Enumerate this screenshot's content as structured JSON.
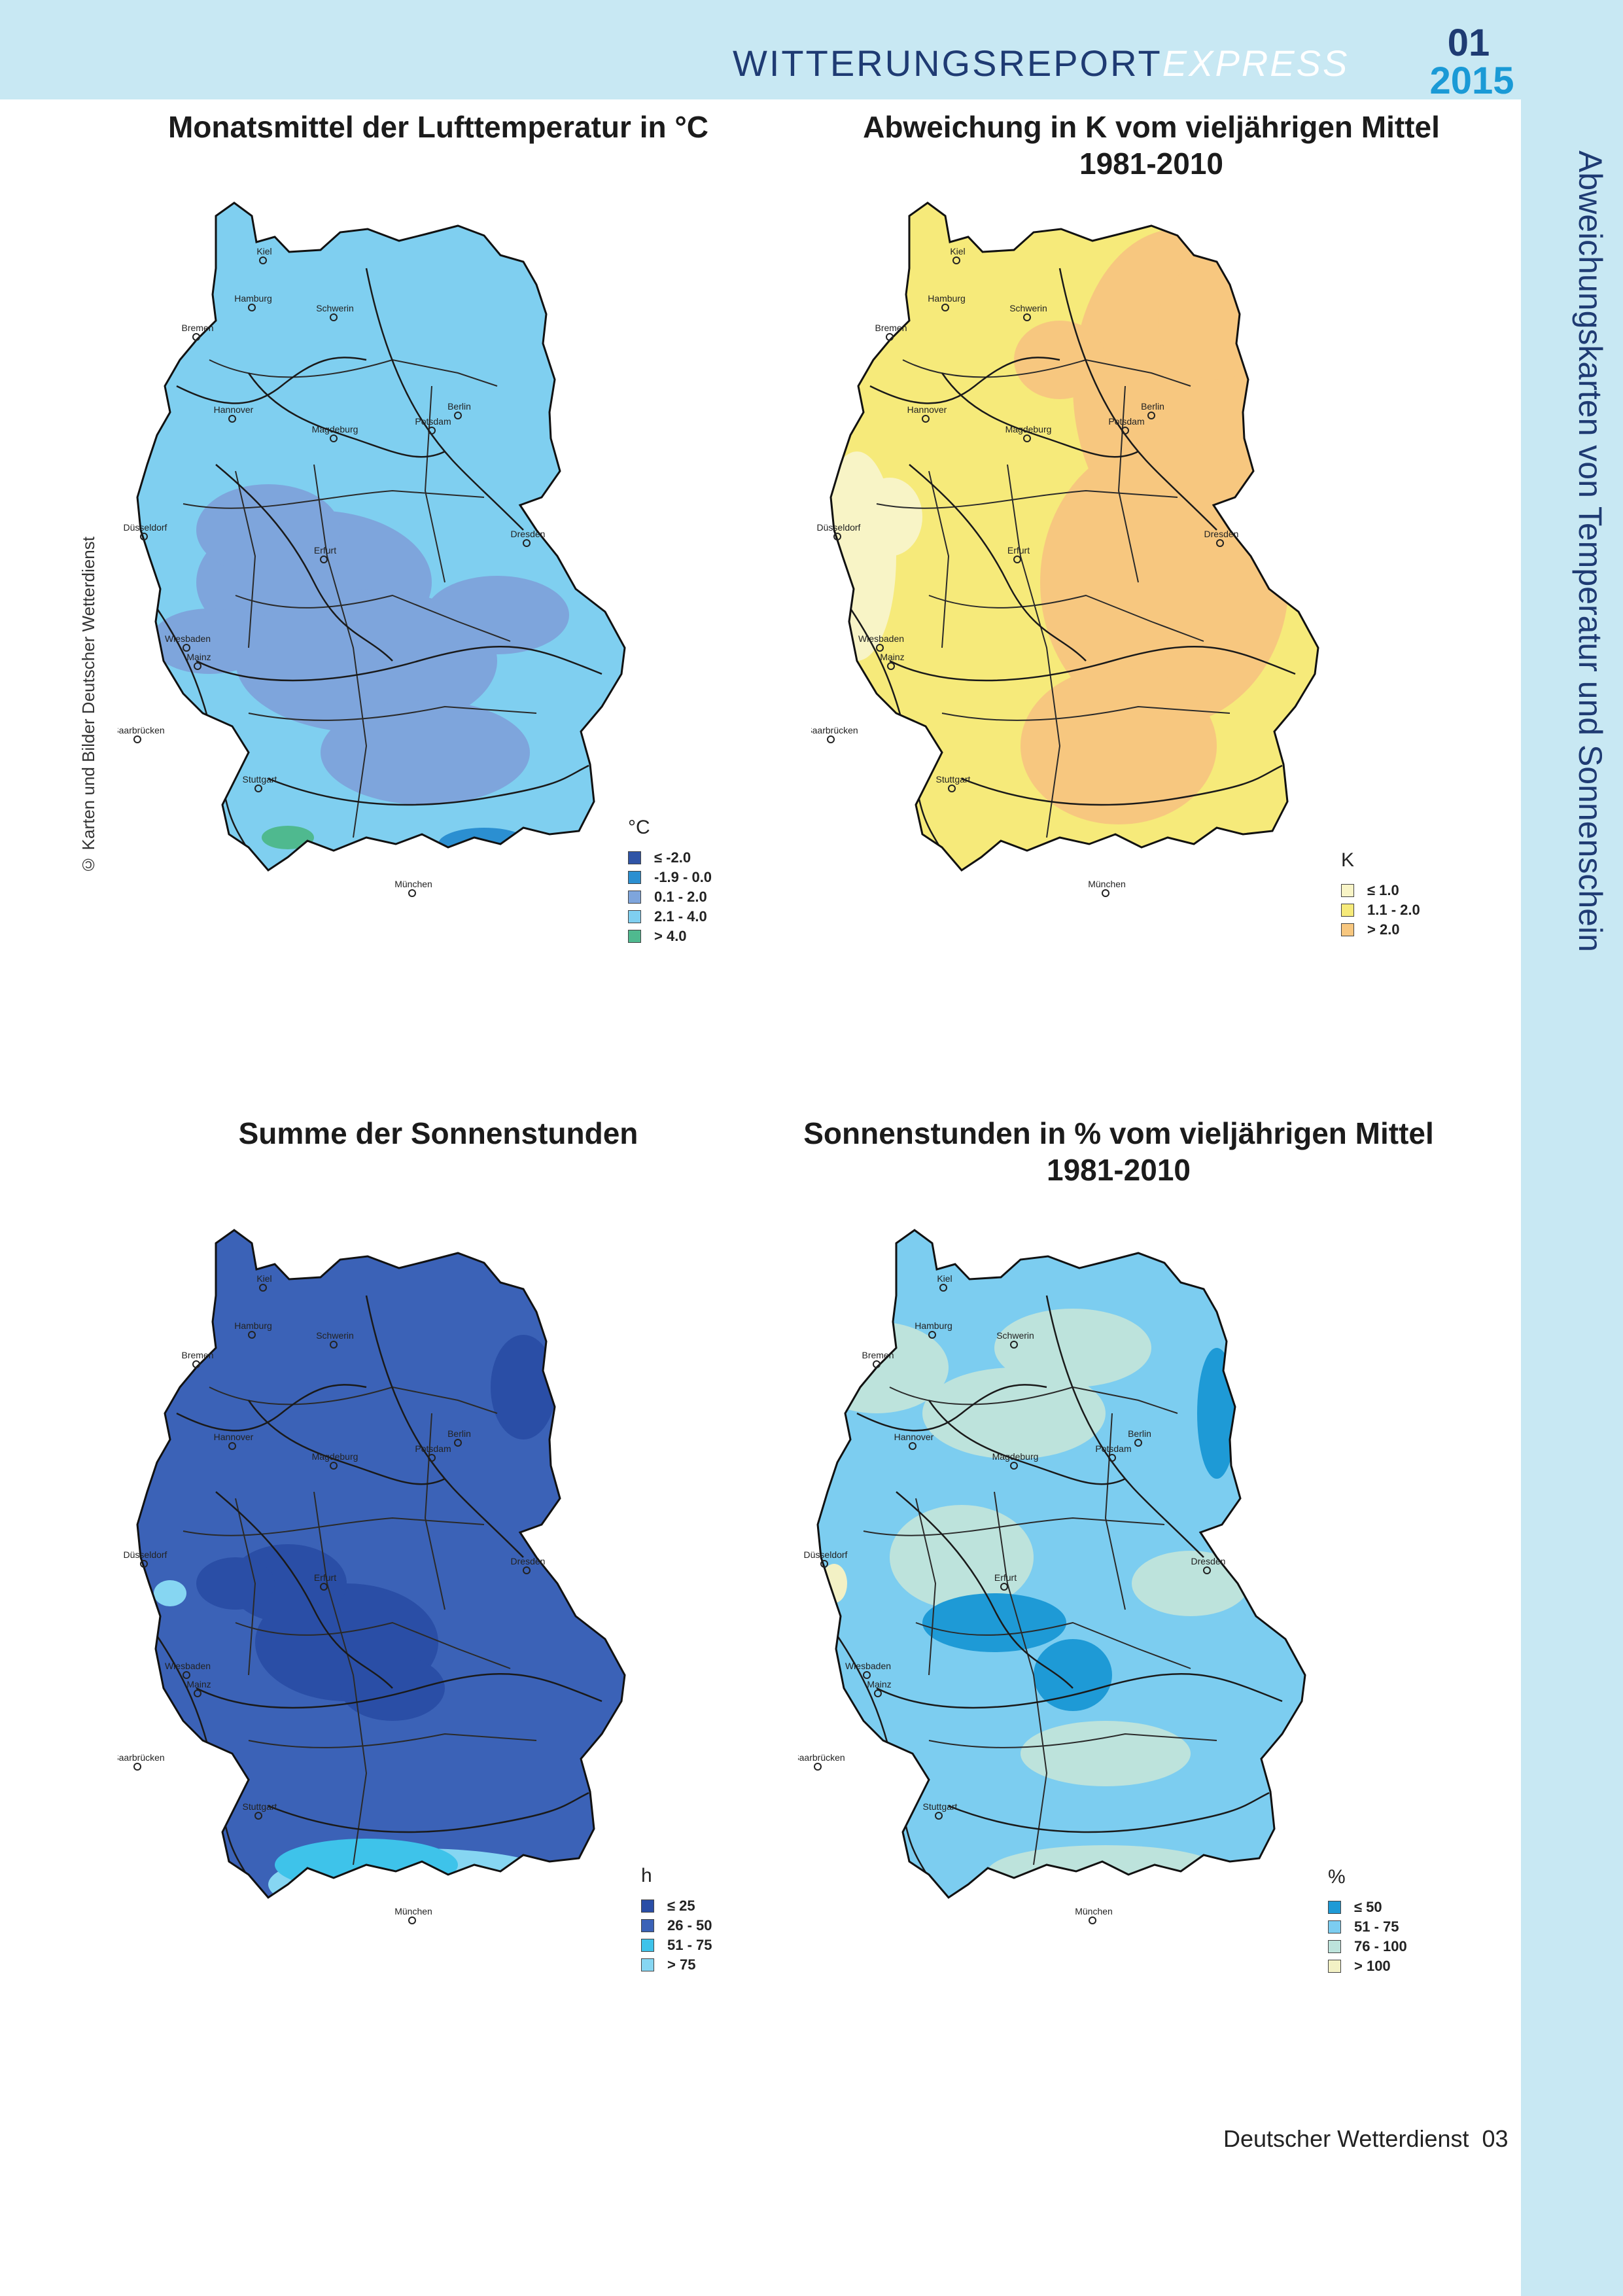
{
  "header": {
    "title_main": "WITTERUNGSREPORT",
    "title_accent": "EXPRESS",
    "issue": "01",
    "year": "2015"
  },
  "side_title": "Abweichungskarten von Temperatur und Sonnenschein",
  "credit": "© Karten und Bilder Deutscher Wetterdienst",
  "maps": [
    {
      "title": "Monatsmittel der Lufttemperatur in °C",
      "legend_unit": "°C",
      "legend": [
        {
          "label": "≤  -2.0",
          "color": "#2f54a6"
        },
        {
          "label": "-1.9 - 0.0",
          "color": "#2b8fd1"
        },
        {
          "label": "0.1 - 2.0",
          "color": "#7ea5dc"
        },
        {
          "label": "2.1 - 4.0",
          "color": "#7fcff0"
        },
        {
          "label": "> 4.0",
          "color": "#4fb98f"
        }
      ],
      "base_color": "#7fcff0",
      "blotch_color": "#7ea5dc"
    },
    {
      "title": "Abweichung in K vom vieljährigen Mittel 1981-2010",
      "title_line1": "Abweichung in K vom vieljährigen Mittel",
      "title_line2": "1981-2010",
      "legend_unit": "K",
      "legend": [
        {
          "label": "≤  1.0",
          "color": "#f8f4c6"
        },
        {
          "label": "1.1 - 2.0",
          "color": "#f6ea7a"
        },
        {
          "label": "> 2.0",
          "color": "#f7c77f"
        }
      ],
      "base_color": "#f6ea7a",
      "blotch_color": "#f7c77f"
    },
    {
      "title": "Summe der Sonnenstunden",
      "legend_unit": "h",
      "legend": [
        {
          "label": "≤  25",
          "color": "#2a4ea6"
        },
        {
          "label": "26 - 50",
          "color": "#3b62b7"
        },
        {
          "label": "51 - 75",
          "color": "#3ec3ea"
        },
        {
          "label": "> 75",
          "color": "#86d6f2"
        }
      ],
      "base_color": "#3b62b7",
      "blotch_color": "#2a4ea6"
    },
    {
      "title": "Sonnenstunden in % vom vieljährigen Mittel 1981-2010",
      "title_line1": "Sonnenstunden in % vom vieljährigen Mittel",
      "title_line2": "1981-2010",
      "legend_unit": "%",
      "legend": [
        {
          "label": "≤  50",
          "color": "#1e9ad6"
        },
        {
          "label": "51 - 75",
          "color": "#7ccdf0"
        },
        {
          "label": "76 - 100",
          "color": "#bde3dc"
        },
        {
          "label": "> 100",
          "color": "#f3f1c5"
        }
      ],
      "base_color": "#7ccdf0",
      "blotch_color": "#bde3dc"
    }
  ],
  "cities": [
    "Kiel",
    "Hamburg",
    "Schwerin",
    "Bremen",
    "Berlin",
    "Potsdam",
    "Hannover",
    "Magdeburg",
    "Düsseldorf",
    "Dresden",
    "Erfurt",
    "Wiesbaden",
    "Mainz",
    "Saarbrücken",
    "Stuttgart",
    "München"
  ],
  "footer": {
    "org": "Deutscher Wetterdienst",
    "page": "03"
  }
}
